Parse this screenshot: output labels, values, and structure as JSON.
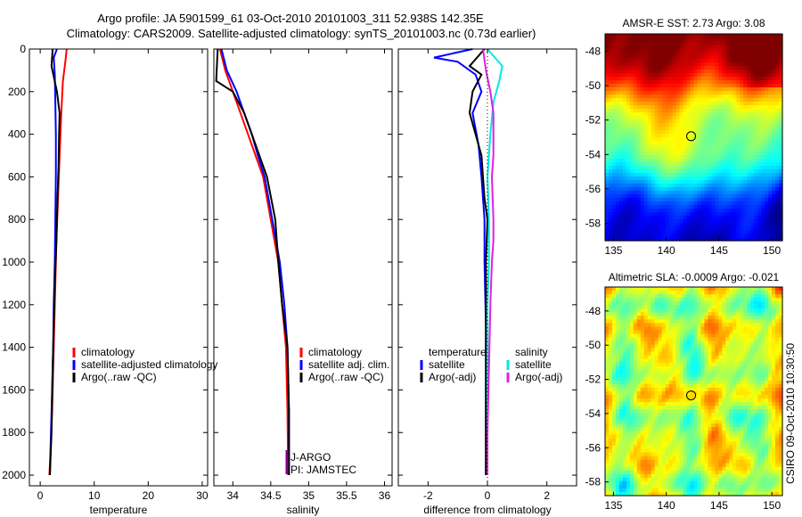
{
  "title_line1": "Argo profile: JA 5901599_61 03-Oct-2010 20101003_311 52.938S 142.35E",
  "title_line2": "Climatology: CARS2009. Satellite-adjusted climatology: synTS_20101003.nc (0.73d earlier)",
  "footer": "CSIRO 09-Oct-2010 10:30:50",
  "colors": {
    "climatology": "#ff0000",
    "satellite": "#0000ff",
    "argo": "#000000",
    "cyan": "#00e8e8",
    "magenta": "#e020e0",
    "purple": "#800080"
  },
  "chart_data": [
    {
      "type": "line",
      "id": "temperature",
      "xlabel": "temperature",
      "ylabel": "",
      "xlim": [
        -2,
        31
      ],
      "ylim": [
        2050,
        0
      ],
      "xticks": [
        "0",
        "10",
        "20",
        "30"
      ],
      "xtick_values": [
        0,
        10,
        20,
        30
      ],
      "yticks": [
        "0",
        "200",
        "400",
        "600",
        "800",
        "1000",
        "1200",
        "1400",
        "1600",
        "1800",
        "2000"
      ],
      "ytick_values": [
        0,
        200,
        400,
        600,
        800,
        1000,
        1200,
        1400,
        1600,
        1800,
        2000
      ],
      "legend": [
        "climatology",
        "satellite-adjusted climatology",
        "Argo(..raw -QC)"
      ],
      "series": [
        {
          "name": "climatology",
          "color_key": "climatology",
          "x": [
            4.9,
            4.7,
            4.2,
            3.9,
            3.6,
            3.3,
            3.0,
            2.8,
            2.6,
            2.4,
            2.2,
            1.9,
            1.7
          ],
          "y": [
            0,
            50,
            150,
            300,
            500,
            700,
            900,
            1100,
            1300,
            1500,
            1700,
            1900,
            2000
          ]
        },
        {
          "name": "satellite-adjusted climatology",
          "color_key": "satellite",
          "x": [
            3.1,
            2.5,
            2.7,
            2.8,
            2.9,
            2.9,
            2.8,
            2.7,
            2.5,
            2.4,
            2.2,
            2.0,
            1.8
          ],
          "y": [
            0,
            40,
            120,
            250,
            400,
            600,
            800,
            1000,
            1200,
            1400,
            1600,
            1800,
            2000
          ]
        },
        {
          "name": "Argo(..raw -QC)",
          "color_key": "argo",
          "x": [
            2.3,
            2.1,
            3.1,
            3.6,
            3.5,
            3.4,
            3.2,
            3.0,
            2.7,
            2.5,
            2.3,
            2.1,
            1.8
          ],
          "y": [
            0,
            80,
            200,
            300,
            400,
            550,
            700,
            900,
            1100,
            1300,
            1500,
            1800,
            2000
          ]
        }
      ]
    },
    {
      "type": "line",
      "id": "salinity",
      "xlabel": "salinity",
      "xlim": [
        33.75,
        36.1
      ],
      "ylim": [
        2050,
        0
      ],
      "xticks": [
        "34",
        "34.5",
        "35",
        "35.5",
        "36"
      ],
      "xtick_values": [
        34,
        34.5,
        35,
        35.5,
        36
      ],
      "legend": [
        "climatology",
        "satellite adj. clim.",
        "Argo(..raw -QC)"
      ],
      "annotations": [
        "J-ARGO",
        "PI: JAMSTEC"
      ],
      "series": [
        {
          "name": "climatology",
          "color_key": "climatology",
          "x": [
            33.83,
            33.9,
            34.0,
            34.1,
            34.2,
            34.3,
            34.4,
            34.5,
            34.6,
            34.65,
            34.7,
            34.72,
            34.73
          ],
          "y": [
            0,
            100,
            200,
            300,
            400,
            500,
            600,
            800,
            1000,
            1200,
            1400,
            1700,
            2000
          ]
        },
        {
          "name": "satellite adj. clim.",
          "color_key": "satellite",
          "x": [
            33.85,
            33.92,
            34.05,
            34.15,
            34.25,
            34.33,
            34.42,
            34.52,
            34.62,
            34.68,
            34.72,
            34.74,
            34.74
          ],
          "y": [
            0,
            100,
            200,
            300,
            400,
            500,
            600,
            800,
            1000,
            1200,
            1400,
            1700,
            2000
          ]
        },
        {
          "name": "Argo(..raw -QC)",
          "color_key": "argo",
          "x": [
            33.8,
            33.78,
            34.0,
            34.15,
            34.25,
            34.35,
            34.45,
            34.56,
            34.6,
            34.65,
            34.72,
            34.74,
            34.74
          ],
          "y": [
            0,
            150,
            200,
            300,
            400,
            500,
            600,
            800,
            1000,
            1200,
            1400,
            1700,
            2000
          ]
        }
      ]
    },
    {
      "type": "line",
      "id": "difference",
      "xlabel": "difference from climatology",
      "xlim": [
        -3,
        3
      ],
      "ylim": [
        2050,
        0
      ],
      "xticks": [
        "-2",
        "0",
        "2"
      ],
      "xtick_values": [
        -2,
        0,
        2
      ],
      "legend_groups": [
        {
          "heading": "temperature",
          "items": [
            "satellite",
            "Argo(-adj)"
          ]
        },
        {
          "heading": "salinity",
          "items": [
            "satellite",
            "Argo(-adj)"
          ]
        }
      ],
      "series": [
        {
          "name": "temperature satellite",
          "color_key": "satellite",
          "x": [
            -0.5,
            -1.8,
            -1.0,
            -0.4,
            -0.2,
            -0.5,
            -0.3,
            -0.2,
            -0.1,
            -0.1,
            -0.05,
            -0.05,
            -0.05
          ],
          "y": [
            0,
            40,
            60,
            120,
            200,
            300,
            450,
            600,
            800,
            1000,
            1300,
            1700,
            2000
          ]
        },
        {
          "name": "temperature Argo(-adj)",
          "color_key": "argo",
          "x": [
            -0.1,
            -0.6,
            -0.2,
            -0.5,
            -0.6,
            -0.4,
            -0.2,
            -0.1,
            0.0,
            -0.05,
            -0.05,
            -0.05,
            -0.05
          ],
          "y": [
            0,
            80,
            120,
            200,
            300,
            400,
            500,
            700,
            800,
            1000,
            1300,
            1700,
            2000
          ]
        },
        {
          "name": "salinity satellite",
          "color_key": "cyan",
          "x": [
            0.0,
            0.5,
            0.4,
            0.2,
            0.1,
            0.0,
            0.05,
            0.05,
            0.0,
            0.0,
            0.0,
            0.0,
            0.0
          ],
          "y": [
            0,
            80,
            150,
            250,
            400,
            600,
            800,
            1000,
            1200,
            1400,
            1600,
            1800,
            2000
          ]
        },
        {
          "name": "salinity Argo(-adj)",
          "color_key": "magenta",
          "x": [
            -0.15,
            -0.05,
            0.1,
            0.2,
            0.2,
            0.15,
            0.2,
            0.2,
            0.15,
            0.1,
            0.05,
            0.0,
            0.0
          ],
          "y": [
            0,
            100,
            200,
            300,
            500,
            600,
            800,
            900,
            1000,
            1200,
            1500,
            1800,
            2000
          ]
        }
      ]
    },
    {
      "type": "heatmap",
      "id": "sst_map",
      "title": "AMSR-E SST: 2.73 Argo: 3.08",
      "xlim": [
        134.2,
        151.0
      ],
      "ylim": [
        -59.0,
        -47.0
      ],
      "xticks": [
        "135",
        "140",
        "145",
        "150"
      ],
      "xtick_values": [
        135,
        140,
        145,
        150
      ],
      "yticks": [
        "-48",
        "-50",
        "-52",
        "-54",
        "-56",
        "-58"
      ],
      "ytick_values": [
        -48,
        -50,
        -52,
        -54,
        -56,
        -58
      ],
      "marker": {
        "lon": 142.35,
        "lat": -52.938
      }
    },
    {
      "type": "heatmap",
      "id": "sla_map",
      "title": "Altimetric SLA: -0.0009 Argo: -0.021",
      "xlim": [
        134.2,
        151.0
      ],
      "ylim": [
        -58.8,
        -46.6
      ],
      "xticks": [
        "135",
        "140",
        "145",
        "150"
      ],
      "xtick_values": [
        135,
        140,
        145,
        150
      ],
      "yticks": [
        "-48",
        "-50",
        "-52",
        "-54",
        "-56",
        "-58"
      ],
      "ytick_values": [
        -48,
        -50,
        -52,
        -54,
        -56,
        -58
      ],
      "marker": {
        "lon": 142.35,
        "lat": -52.938
      }
    }
  ]
}
